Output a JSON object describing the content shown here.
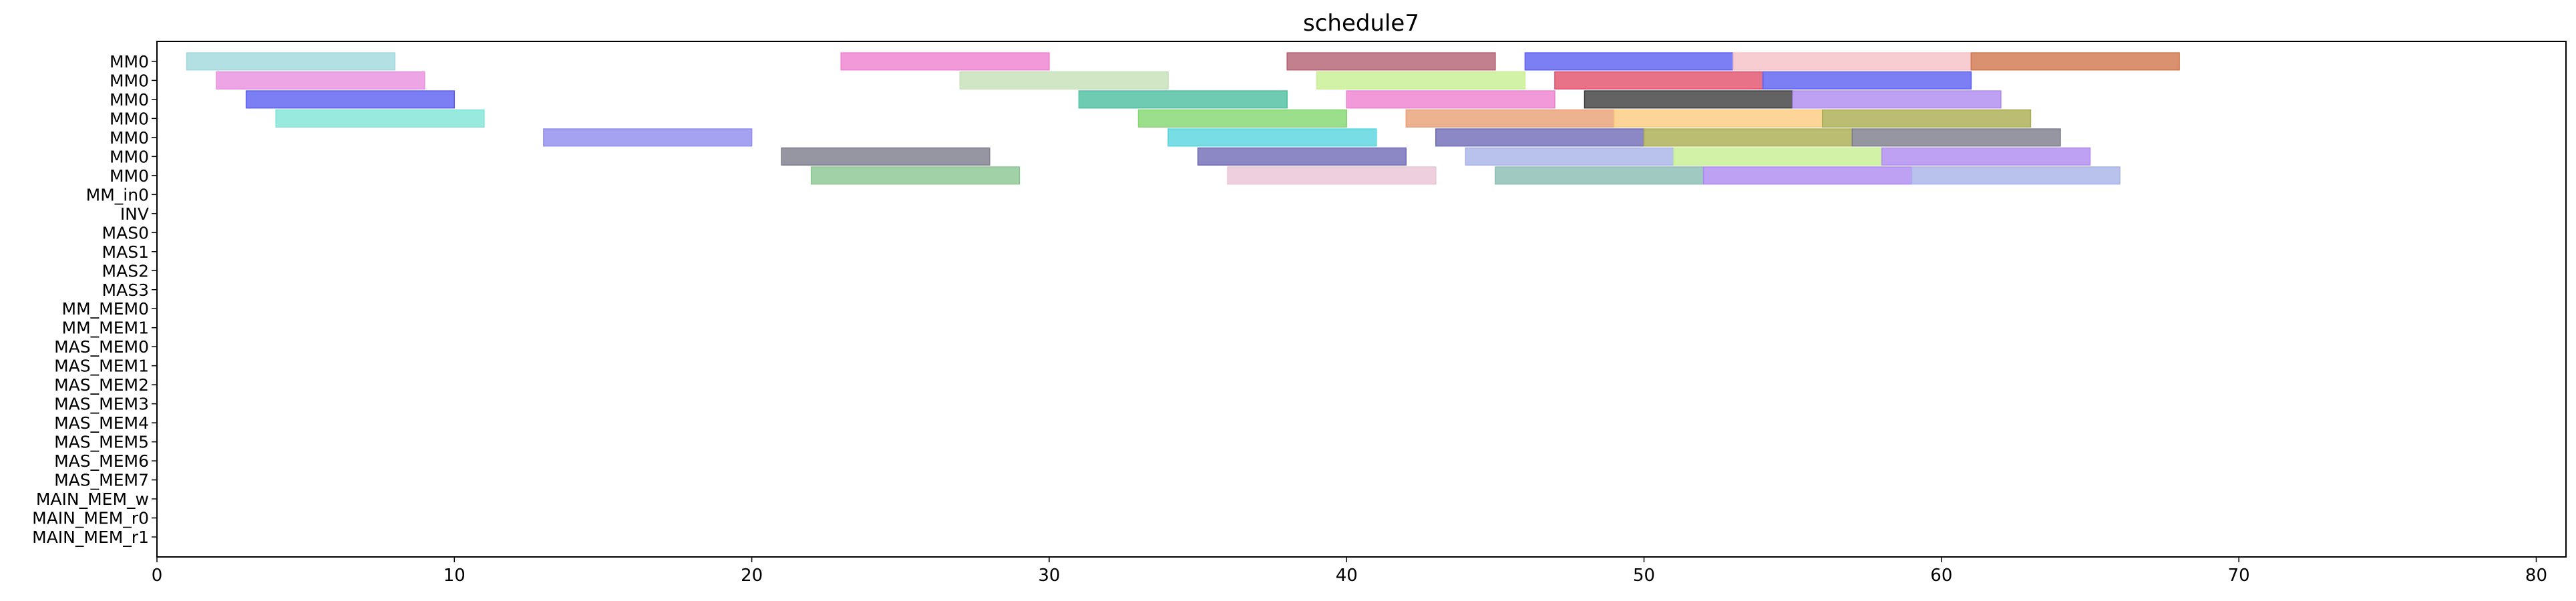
{
  "chart_data": {
    "type": "gantt",
    "title": "schedule7",
    "xlabel": "",
    "ylabel": "",
    "xlim": [
      0,
      81
    ],
    "grid": false,
    "xticks": [
      "0",
      "10",
      "20",
      "30",
      "40",
      "50",
      "60",
      "70",
      "80"
    ],
    "rows": [
      "MM0",
      "MM0",
      "MM0",
      "MM0",
      "MM0",
      "MM0",
      "MM0",
      "MM_in0",
      "INV",
      "MAS0",
      "MAS1",
      "MAS2",
      "MAS3",
      "MM_MEM0",
      "MM_MEM1",
      "MAS_MEM0",
      "MAS_MEM1",
      "MAS_MEM2",
      "MAS_MEM3",
      "MAS_MEM4",
      "MAS_MEM5",
      "MAS_MEM6",
      "MAS_MEM7",
      "MAIN_MEM_w",
      "MAIN_MEM_r0",
      "MAIN_MEM_r1"
    ],
    "palette": [
      "#a0d8dc",
      "#e98fe0",
      "#5a5ff0",
      "#7ee4d6",
      "#8f8cee",
      "#ee7fcf",
      "#c4e0b7",
      "#c7ef92",
      "#b35f70",
      "#e24f6a",
      "#e9c3d4",
      "#d0754b",
      "#8ac590",
      "#4bbfa0",
      "#82d66f",
      "#e8a076",
      "#57d4df",
      "#6f6ab6",
      "#aaac50",
      "#7c7c8b",
      "#a8b1e8",
      "#ae89f0",
      "#f5c0c7",
      "#88bbb1",
      "#f4ef9f",
      "#ec6ad0",
      "#fccb7e",
      "#3c3c3c"
    ],
    "tasks": [
      {
        "row": 0,
        "start": 1,
        "end": 8,
        "c": 0
      },
      {
        "row": 0,
        "start": 23,
        "end": 30,
        "c": 5
      },
      {
        "row": 0,
        "start": 38,
        "end": 45,
        "c": 8
      },
      {
        "row": 0,
        "start": 46,
        "end": 53,
        "c": 2
      },
      {
        "row": 0,
        "start": 53,
        "end": 61,
        "c": 22
      },
      {
        "row": 0,
        "start": 61,
        "end": 68,
        "c": 11
      },
      {
        "row": 1,
        "start": 2,
        "end": 9,
        "c": 1
      },
      {
        "row": 1,
        "start": 27,
        "end": 34,
        "c": 6
      },
      {
        "row": 1,
        "start": 39,
        "end": 46,
        "c": 7
      },
      {
        "row": 1,
        "start": 47,
        "end": 54,
        "c": 9
      },
      {
        "row": 1,
        "start": 54,
        "end": 61,
        "c": 2
      },
      {
        "row": 2,
        "start": 3,
        "end": 10,
        "c": 2
      },
      {
        "row": 2,
        "start": 31,
        "end": 38,
        "c": 13
      },
      {
        "row": 2,
        "start": 40,
        "end": 47,
        "c": 5
      },
      {
        "row": 2,
        "start": 48,
        "end": 55,
        "c": 27
      },
      {
        "row": 2,
        "start": 55,
        "end": 62,
        "c": 21
      },
      {
        "row": 3,
        "start": 4,
        "end": 11,
        "c": 3
      },
      {
        "row": 3,
        "start": 33,
        "end": 40,
        "c": 14
      },
      {
        "row": 3,
        "start": 42,
        "end": 49,
        "c": 15
      },
      {
        "row": 3,
        "start": 49,
        "end": 56,
        "c": 26
      },
      {
        "row": 3,
        "start": 56,
        "end": 63,
        "c": 18
      },
      {
        "row": 4,
        "start": 13,
        "end": 20,
        "c": 4
      },
      {
        "row": 4,
        "start": 34,
        "end": 41,
        "c": 16
      },
      {
        "row": 4,
        "start": 43,
        "end": 50,
        "c": 17
      },
      {
        "row": 4,
        "start": 50,
        "end": 57,
        "c": 18
      },
      {
        "row": 4,
        "start": 57,
        "end": 64,
        "c": 19
      },
      {
        "row": 5,
        "start": 21,
        "end": 28,
        "c": 19
      },
      {
        "row": 5,
        "start": 35,
        "end": 42,
        "c": 17
      },
      {
        "row": 5,
        "start": 44,
        "end": 51,
        "c": 20
      },
      {
        "row": 5,
        "start": 51,
        "end": 58,
        "c": 7
      },
      {
        "row": 5,
        "start": 58,
        "end": 65,
        "c": 21
      },
      {
        "row": 6,
        "start": 22,
        "end": 29,
        "c": 12
      },
      {
        "row": 6,
        "start": 36,
        "end": 43,
        "c": 10
      },
      {
        "row": 6,
        "start": 45,
        "end": 52,
        "c": 23
      },
      {
        "row": 6,
        "start": 52,
        "end": 59,
        "c": 21
      },
      {
        "row": 6,
        "start": 59,
        "end": 66,
        "c": 20
      }
    ]
  }
}
